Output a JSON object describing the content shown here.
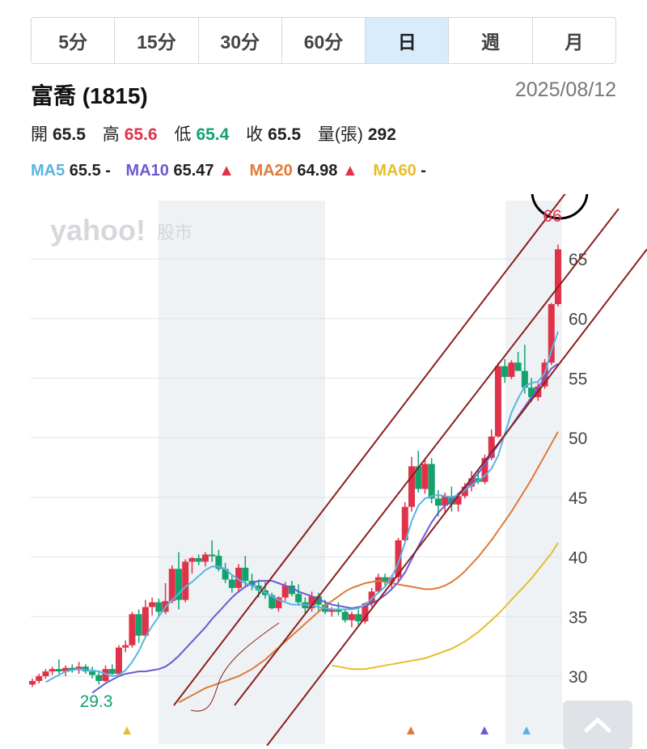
{
  "tabs": [
    {
      "label": "5分",
      "active": false
    },
    {
      "label": "15分",
      "active": false
    },
    {
      "label": "30分",
      "active": false
    },
    {
      "label": "60分",
      "active": false
    },
    {
      "label": "日",
      "active": true
    },
    {
      "label": "週",
      "active": false
    },
    {
      "label": "月",
      "active": false
    }
  ],
  "header": {
    "title": "富喬 (1815)",
    "date": "2025/08/12"
  },
  "quote": {
    "open_label": "開",
    "open": "65.5",
    "high_label": "高",
    "high": "65.6",
    "low_label": "低",
    "low": "65.4",
    "close_label": "收",
    "close": "65.5",
    "volume_label": "量(張)",
    "volume": "292"
  },
  "ma": {
    "ma5_label": "MA5",
    "ma5_value": "65.5",
    "ma5_trend": "-",
    "ma10_label": "MA10",
    "ma10_value": "65.47",
    "ma10_trend": "▲",
    "ma20_label": "MA20",
    "ma20_value": "64.98",
    "ma20_trend": "▲",
    "ma60_label": "MA60",
    "ma60_value": "",
    "ma60_trend": "-"
  },
  "watermark": {
    "brand": "yahoo!",
    "suffix": "股市"
  },
  "colors": {
    "up": "#e0334a",
    "down": "#13a26d",
    "ma5": "#5ab4e2",
    "ma10": "#6a5ccf",
    "ma20": "#e07a37",
    "ma60": "#e7bd2a",
    "trend_line": "#8b1f1f",
    "annotation_circle": "#000000",
    "shade": "#eef2f5"
  },
  "chart_data": {
    "type": "candlestick",
    "y_ticks": [
      30,
      35,
      40,
      45,
      50,
      55,
      60,
      65
    ],
    "ylim": [
      27,
      70
    ],
    "max_label": "66",
    "min_label": "29.3",
    "candles": [
      [
        29.3,
        29.8,
        29.1,
        29.6
      ],
      [
        29.6,
        30.2,
        29.4,
        30.0
      ],
      [
        30.0,
        30.6,
        29.8,
        30.4
      ],
      [
        30.4,
        30.8,
        30.1,
        30.6
      ],
      [
        30.6,
        31.4,
        30.2,
        30.4
      ],
      [
        30.4,
        30.9,
        30.0,
        30.7
      ],
      [
        30.7,
        31.0,
        30.3,
        30.5
      ],
      [
        30.5,
        31.2,
        30.2,
        30.8
      ],
      [
        30.8,
        31.0,
        30.2,
        30.4
      ],
      [
        30.4,
        30.8,
        29.8,
        30.1
      ],
      [
        30.1,
        30.5,
        29.3,
        29.6
      ],
      [
        29.6,
        30.9,
        29.5,
        30.6
      ],
      [
        30.6,
        31.0,
        30.1,
        30.2
      ],
      [
        30.2,
        32.6,
        30.1,
        32.4
      ],
      [
        32.4,
        33.0,
        32.0,
        32.6
      ],
      [
        32.6,
        35.4,
        32.4,
        35.2
      ],
      [
        35.2,
        35.6,
        32.8,
        33.4
      ],
      [
        33.4,
        36.4,
        33.2,
        35.8
      ],
      [
        35.8,
        36.6,
        35.1,
        36.2
      ],
      [
        36.2,
        36.5,
        35.0,
        35.4
      ],
      [
        35.4,
        37.8,
        35.2,
        36.3
      ],
      [
        36.3,
        39.3,
        36.1,
        39.0
      ],
      [
        39.0,
        40.4,
        35.6,
        36.4
      ],
      [
        36.4,
        39.8,
        36.2,
        39.6
      ],
      [
        39.6,
        40.0,
        38.6,
        39.9
      ],
      [
        39.9,
        40.2,
        39.3,
        39.6
      ],
      [
        39.6,
        40.4,
        39.2,
        40.2
      ],
      [
        40.2,
        41.4,
        39.6,
        40.1
      ],
      [
        40.1,
        40.6,
        38.8,
        39.0
      ],
      [
        39.0,
        39.5,
        37.8,
        38.1
      ],
      [
        38.1,
        38.4,
        37.0,
        37.4
      ],
      [
        37.4,
        39.4,
        37.0,
        39.1
      ],
      [
        39.1,
        40.1,
        37.6,
        38.0
      ],
      [
        38.0,
        38.6,
        37.2,
        37.6
      ],
      [
        37.6,
        38.1,
        36.6,
        37.2
      ],
      [
        37.2,
        37.9,
        36.5,
        36.8
      ],
      [
        36.8,
        37.0,
        35.6,
        35.7
      ],
      [
        35.7,
        36.7,
        35.4,
        36.6
      ],
      [
        36.6,
        37.9,
        36.3,
        37.6
      ],
      [
        37.6,
        38.0,
        36.7,
        36.9
      ],
      [
        36.9,
        37.7,
        35.9,
        36.2
      ],
      [
        36.2,
        36.6,
        35.3,
        35.7
      ],
      [
        35.7,
        37.1,
        35.4,
        36.7
      ],
      [
        36.7,
        37.0,
        35.5,
        36.0
      ],
      [
        36.0,
        36.4,
        35.2,
        35.4
      ],
      [
        35.4,
        35.8,
        35.0,
        35.6
      ],
      [
        35.6,
        36.2,
        35.1,
        35.4
      ],
      [
        35.4,
        35.6,
        34.5,
        34.7
      ],
      [
        34.7,
        35.4,
        34.1,
        35.2
      ],
      [
        35.2,
        35.6,
        34.3,
        34.6
      ],
      [
        34.6,
        36.2,
        34.4,
        36.1
      ],
      [
        36.1,
        37.4,
        35.8,
        37.1
      ],
      [
        37.1,
        38.6,
        36.9,
        38.3
      ],
      [
        38.3,
        38.6,
        37.6,
        37.9
      ],
      [
        37.9,
        38.5,
        37.2,
        38.3
      ],
      [
        38.3,
        41.6,
        38.0,
        41.4
      ],
      [
        41.4,
        44.6,
        41.1,
        44.2
      ],
      [
        44.2,
        48.4,
        43.8,
        47.6
      ],
      [
        47.6,
        48.9,
        45.4,
        45.7
      ],
      [
        45.7,
        48.2,
        45.3,
        47.8
      ],
      [
        47.8,
        48.3,
        44.5,
        44.9
      ],
      [
        44.9,
        45.6,
        43.4,
        44.3
      ],
      [
        44.3,
        45.4,
        43.6,
        45.1
      ],
      [
        45.1,
        45.9,
        43.8,
        44.4
      ],
      [
        44.4,
        45.3,
        43.8,
        45.1
      ],
      [
        45.1,
        46.2,
        44.9,
        45.9
      ],
      [
        45.9,
        47.2,
        45.5,
        46.6
      ],
      [
        46.6,
        47.3,
        46.1,
        46.3
      ],
      [
        46.3,
        48.6,
        46.1,
        48.3
      ],
      [
        48.3,
        50.7,
        48.1,
        50.1
      ],
      [
        50.1,
        56.3,
        50.0,
        56.0
      ],
      [
        56.0,
        56.6,
        54.6,
        55.1
      ],
      [
        55.1,
        56.5,
        54.9,
        56.3
      ],
      [
        56.3,
        57.2,
        55.6,
        55.6
      ],
      [
        55.6,
        57.8,
        53.7,
        54.2
      ],
      [
        54.2,
        55.0,
        53.0,
        53.4
      ],
      [
        53.4,
        54.6,
        53.1,
        54.3
      ],
      [
        54.3,
        56.6,
        54.1,
        56.3
      ],
      [
        56.3,
        61.3,
        56.1,
        61.2
      ],
      [
        61.2,
        66.2,
        61.0,
        65.8
      ]
    ],
    "ma5": [
      29.5,
      29.8,
      30.1,
      30.4,
      30.5,
      30.6,
      30.5,
      30.5,
      30.4,
      30.2,
      30.0,
      30.1,
      30.5,
      31.2,
      32.1,
      33.3,
      34.2,
      35.0,
      35.8,
      36.4,
      36.9,
      37.5,
      37.9,
      38.4,
      38.9,
      39.2,
      39.2,
      39.0,
      38.5,
      38.1,
      37.8,
      37.6,
      37.3,
      37.0,
      36.7,
      36.4,
      36.2,
      36.0,
      36.0,
      36.0,
      35.9,
      35.8,
      35.7,
      35.6,
      35.6,
      35.6,
      35.6,
      35.7,
      36.0,
      36.5,
      37.0,
      37.5,
      38.3,
      39.5,
      41.2,
      43.0,
      44.3,
      44.9,
      45.1,
      45.2,
      45.1,
      45.0,
      45.2,
      45.6,
      46.0,
      46.4,
      46.8,
      47.4,
      48.5,
      50.3,
      52.1,
      53.3,
      54.3,
      54.6,
      54.7,
      55.4,
      57.3,
      58.9
    ],
    "ma10": [
      28.6,
      29.0,
      29.4,
      29.7,
      30.0,
      30.2,
      30.3,
      30.4,
      30.4,
      30.5,
      30.6,
      30.8,
      31.2,
      31.7,
      32.3,
      32.9,
      33.5,
      34.1,
      34.8,
      35.4,
      36.0,
      36.6,
      37.1,
      37.5,
      37.8,
      38.0,
      38.0,
      38.0,
      37.8,
      37.6,
      37.4,
      37.1,
      36.9,
      36.7,
      36.5,
      36.2,
      36.0,
      35.9,
      35.8,
      35.7,
      35.8,
      35.9,
      36.1,
      36.4,
      36.8,
      37.3,
      37.9,
      38.7,
      39.8,
      40.9,
      41.9,
      42.9,
      43.7,
      44.3,
      44.8,
      45.3,
      45.8,
      46.4,
      47.0,
      47.8,
      48.6,
      49.4,
      50.2,
      51.0,
      51.8,
      52.6,
      53.4,
      54.2,
      55.0,
      55.8,
      56.2
    ],
    "ma20": [
      27.8,
      28.1,
      28.4,
      28.7,
      29.0,
      29.2,
      29.4,
      29.6,
      29.8,
      30.0,
      30.3,
      30.6,
      31.0,
      31.4,
      31.9,
      32.4,
      32.9,
      33.4,
      33.9,
      34.4,
      34.9,
      35.4,
      35.9,
      36.3,
      36.7,
      37.1,
      37.4,
      37.6,
      37.8,
      37.9,
      38.0,
      37.9,
      37.8,
      37.7,
      37.6,
      37.5,
      37.4,
      37.3,
      37.3,
      37.4,
      37.6,
      37.9,
      38.3,
      38.8,
      39.4,
      40.0,
      40.7,
      41.4,
      42.2,
      43.0,
      43.8,
      44.7,
      45.6,
      46.5,
      47.5,
      48.5,
      49.5,
      50.5
    ],
    "ma60": [
      30.9,
      30.8,
      30.7,
      30.6,
      30.6,
      30.6,
      30.7,
      30.8,
      30.9,
      31.0,
      31.1,
      31.2,
      31.3,
      31.4,
      31.5,
      31.7,
      31.9,
      32.1,
      32.3,
      32.6,
      32.9,
      33.3,
      33.7,
      34.2,
      34.7,
      35.2,
      35.8,
      36.4,
      37.0,
      37.6,
      38.2,
      38.9,
      39.6,
      40.3,
      41.2
    ],
    "markers": [
      {
        "pos": 0.18,
        "color": "#e7bd2a"
      },
      {
        "pos": 0.72,
        "color": "#e07a37"
      },
      {
        "pos": 0.86,
        "color": "#6a5ccf"
      },
      {
        "pos": 0.94,
        "color": "#5ab4e2"
      }
    ]
  }
}
